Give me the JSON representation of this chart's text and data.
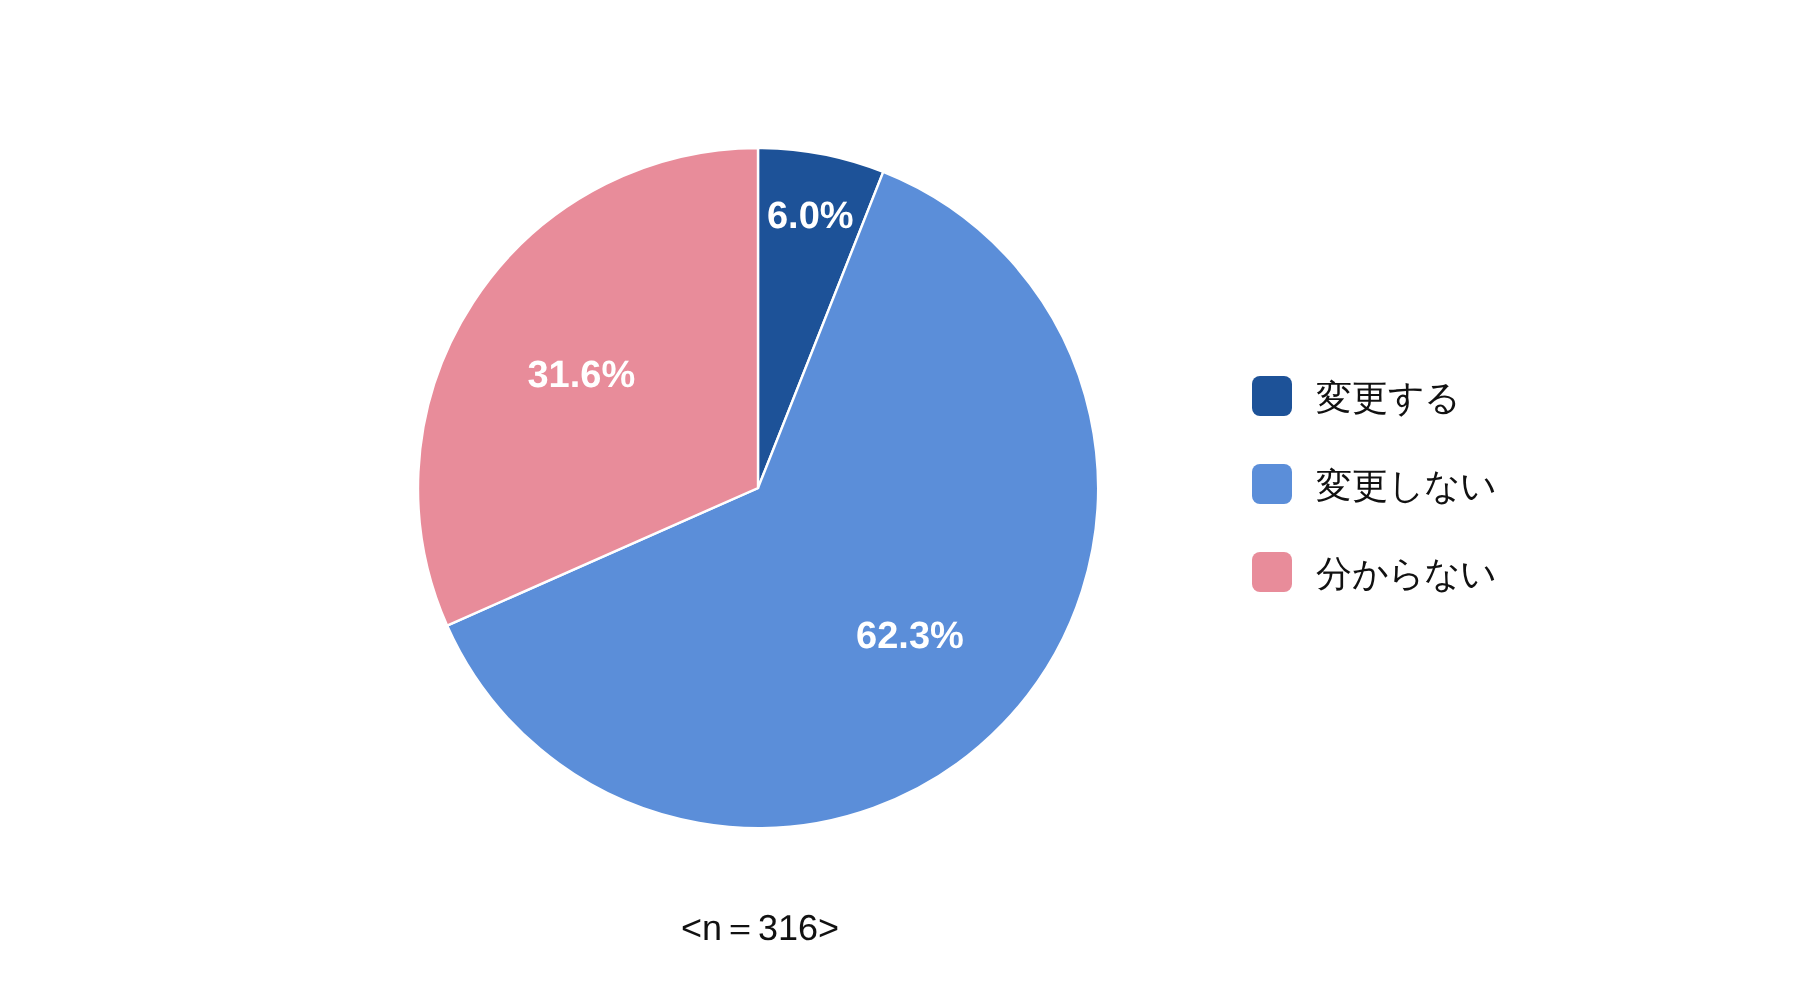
{
  "chart_data": {
    "type": "pie",
    "categories": [
      "変更する",
      "変更しない",
      "分からない"
    ],
    "values": [
      6.0,
      62.3,
      31.6
    ],
    "colors": [
      "#1d5298",
      "#5b8ed9",
      "#e88c9a"
    ],
    "value_labels": [
      "6.0%",
      "62.3%",
      "31.6%"
    ],
    "legend": "right",
    "annotations": [
      "<n＝316>"
    ]
  }
}
